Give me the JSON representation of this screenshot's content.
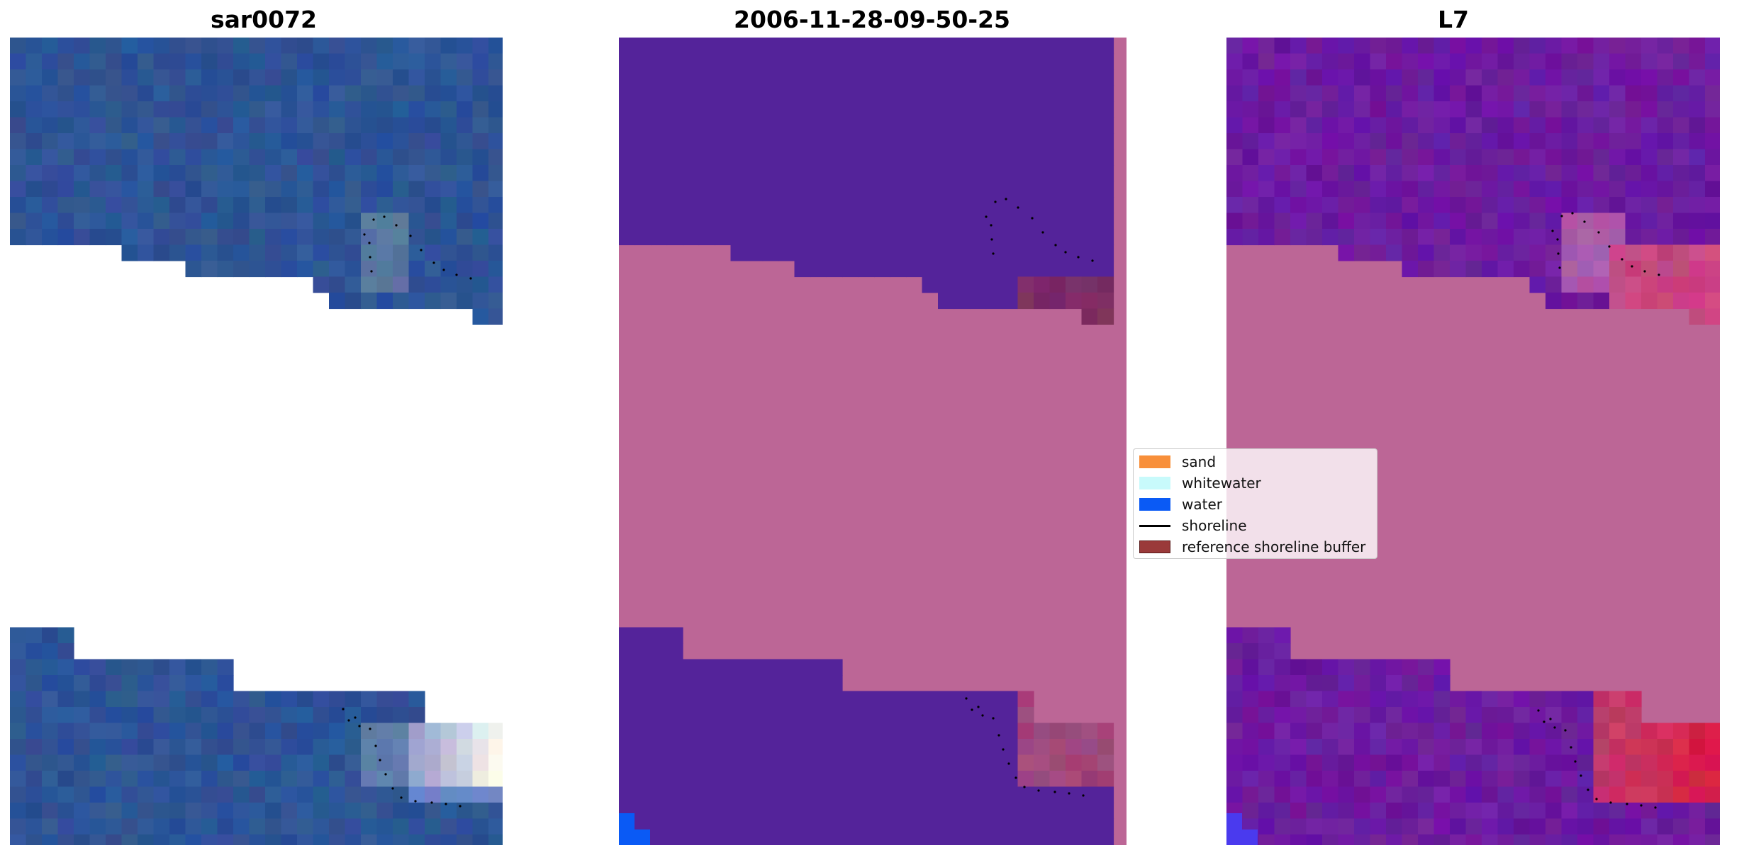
{
  "panels": [
    {
      "title": "sar0072"
    },
    {
      "title": "2006-11-28-09-50-25"
    },
    {
      "title": "L7"
    }
  ],
  "legend": {
    "items": [
      {
        "label": "sand",
        "color": "#f88f3a",
        "kind": "patch"
      },
      {
        "label": "whitewater",
        "color": "#c8fafb",
        "kind": "patch"
      },
      {
        "label": "water",
        "color": "#0a5af5",
        "kind": "patch"
      },
      {
        "label": "shoreline",
        "color": "#000000",
        "kind": "line"
      },
      {
        "label": "reference shoreline buffer",
        "color": "#9a3a3a",
        "kind": "patch"
      }
    ]
  },
  "colors": {
    "rgb_water": "#2e5496",
    "classified_water": "#54239a",
    "buffer_mask": "#bc6696",
    "l7_purple": "#6c1ba0",
    "classified_blue": "#0a5af5",
    "shoreline": "#000000"
  }
}
